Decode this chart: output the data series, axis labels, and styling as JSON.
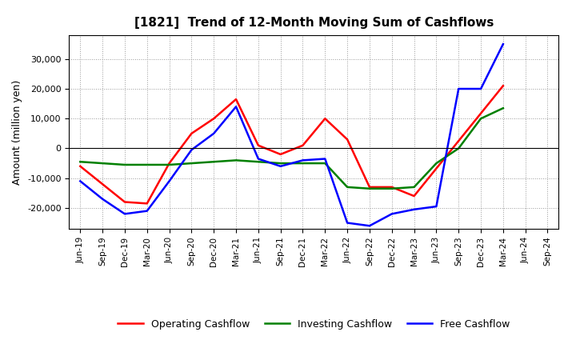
{
  "title": "[1821]  Trend of 12-Month Moving Sum of Cashflows",
  "ylabel": "Amount (million yen)",
  "background_color": "#ffffff",
  "plot_bg_color": "#ffffff",
  "grid_color": "#999999",
  "x_labels": [
    "Jun-19",
    "Sep-19",
    "Dec-19",
    "Mar-20",
    "Jun-20",
    "Sep-20",
    "Dec-20",
    "Mar-21",
    "Jun-21",
    "Sep-21",
    "Dec-21",
    "Mar-22",
    "Jun-22",
    "Sep-22",
    "Dec-22",
    "Mar-23",
    "Jun-23",
    "Sep-23",
    "Dec-23",
    "Mar-24",
    "Jun-24",
    "Sep-24"
  ],
  "operating_cashflow": [
    -6000,
    -12000,
    -18000,
    -18500,
    -5000,
    5000,
    10000,
    16500,
    1000,
    -2000,
    1000,
    10000,
    3000,
    -13000,
    -13000,
    -16000,
    null,
    null,
    null,
    21000,
    null,
    null
  ],
  "investing_cashflow": [
    -4500,
    -5000,
    -5500,
    -5500,
    -5500,
    -5000,
    -4500,
    -4000,
    -4500,
    -5000,
    -5000,
    -5000,
    -13000,
    -13500,
    -13500,
    -13000,
    -5000,
    0,
    10000,
    13500,
    null,
    null
  ],
  "free_cashflow": [
    -11000,
    -17000,
    -22000,
    -21000,
    -11000,
    -500,
    5000,
    14000,
    -3500,
    -6000,
    -4000,
    -3500,
    -25000,
    -26000,
    -22000,
    -20500,
    -19500,
    20000,
    20000,
    35000,
    null,
    null
  ],
  "operating_color": "#ff0000",
  "investing_color": "#008000",
  "free_color": "#0000ff",
  "ylim": [
    -27000,
    38000
  ],
  "yticks": [
    -20000,
    -10000,
    0,
    10000,
    20000,
    30000
  ],
  "line_width": 1.8
}
